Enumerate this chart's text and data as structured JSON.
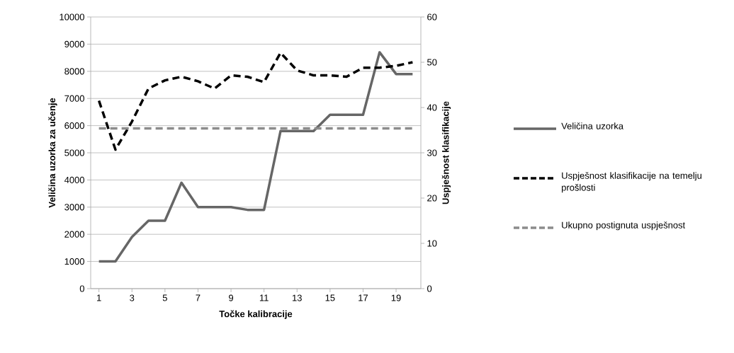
{
  "chart_data": {
    "type": "line",
    "xlabel": "Točke kalibracije",
    "ylabel": "Veličina uzorka za učenje",
    "y2label": "Uspješnost klasifikacije",
    "x": [
      1,
      2,
      3,
      4,
      5,
      6,
      7,
      8,
      9,
      10,
      11,
      12,
      13,
      14,
      15,
      16,
      17,
      18,
      19,
      20
    ],
    "xlim": [
      0.5,
      20.5
    ],
    "xticks": [
      1,
      3,
      5,
      7,
      9,
      11,
      13,
      15,
      17,
      19
    ],
    "ylim": [
      0,
      10000
    ],
    "yticks": [
      0,
      1000,
      2000,
      3000,
      4000,
      5000,
      6000,
      7000,
      8000,
      9000,
      10000
    ],
    "y2lim": [
      0,
      60
    ],
    "y2ticks": [
      0,
      10,
      20,
      30,
      40,
      50,
      60
    ],
    "grid": "y",
    "legend": "right",
    "series": [
      {
        "name": "Veličina uzorka",
        "color": "#666666",
        "line_style": "solid",
        "values": [
          1000,
          1000,
          1900,
          2500,
          2500,
          3900,
          3000,
          3000,
          3000,
          2900,
          2900,
          5800,
          5800,
          5800,
          6400,
          6400,
          6400,
          8700,
          7900,
          7900
        ]
      },
      {
        "name": "Uspješnost klasifikacije na temelju prošlosti",
        "color": "#000000",
        "line_style": "dashed",
        "axis": "y2",
        "values": [
          41.5,
          30.7,
          36.9,
          44.2,
          46.0,
          46.8,
          45.8,
          44.2,
          47.1,
          46.8,
          45.6,
          52.1,
          48.2,
          47.1,
          47.1,
          46.8,
          48.8,
          48.8,
          49.2,
          50.0
        ]
      },
      {
        "name": "Ukupno postignuta uspješnost",
        "color": "#8c8c8c",
        "line_style": "dashed",
        "axis": "y2",
        "values": [
          35.4,
          35.4,
          35.4,
          35.4,
          35.4,
          35.4,
          35.4,
          35.4,
          35.4,
          35.4,
          35.4,
          35.4,
          35.4,
          35.4,
          35.4,
          35.4,
          35.4,
          35.4,
          35.4,
          35.4
        ]
      }
    ]
  }
}
